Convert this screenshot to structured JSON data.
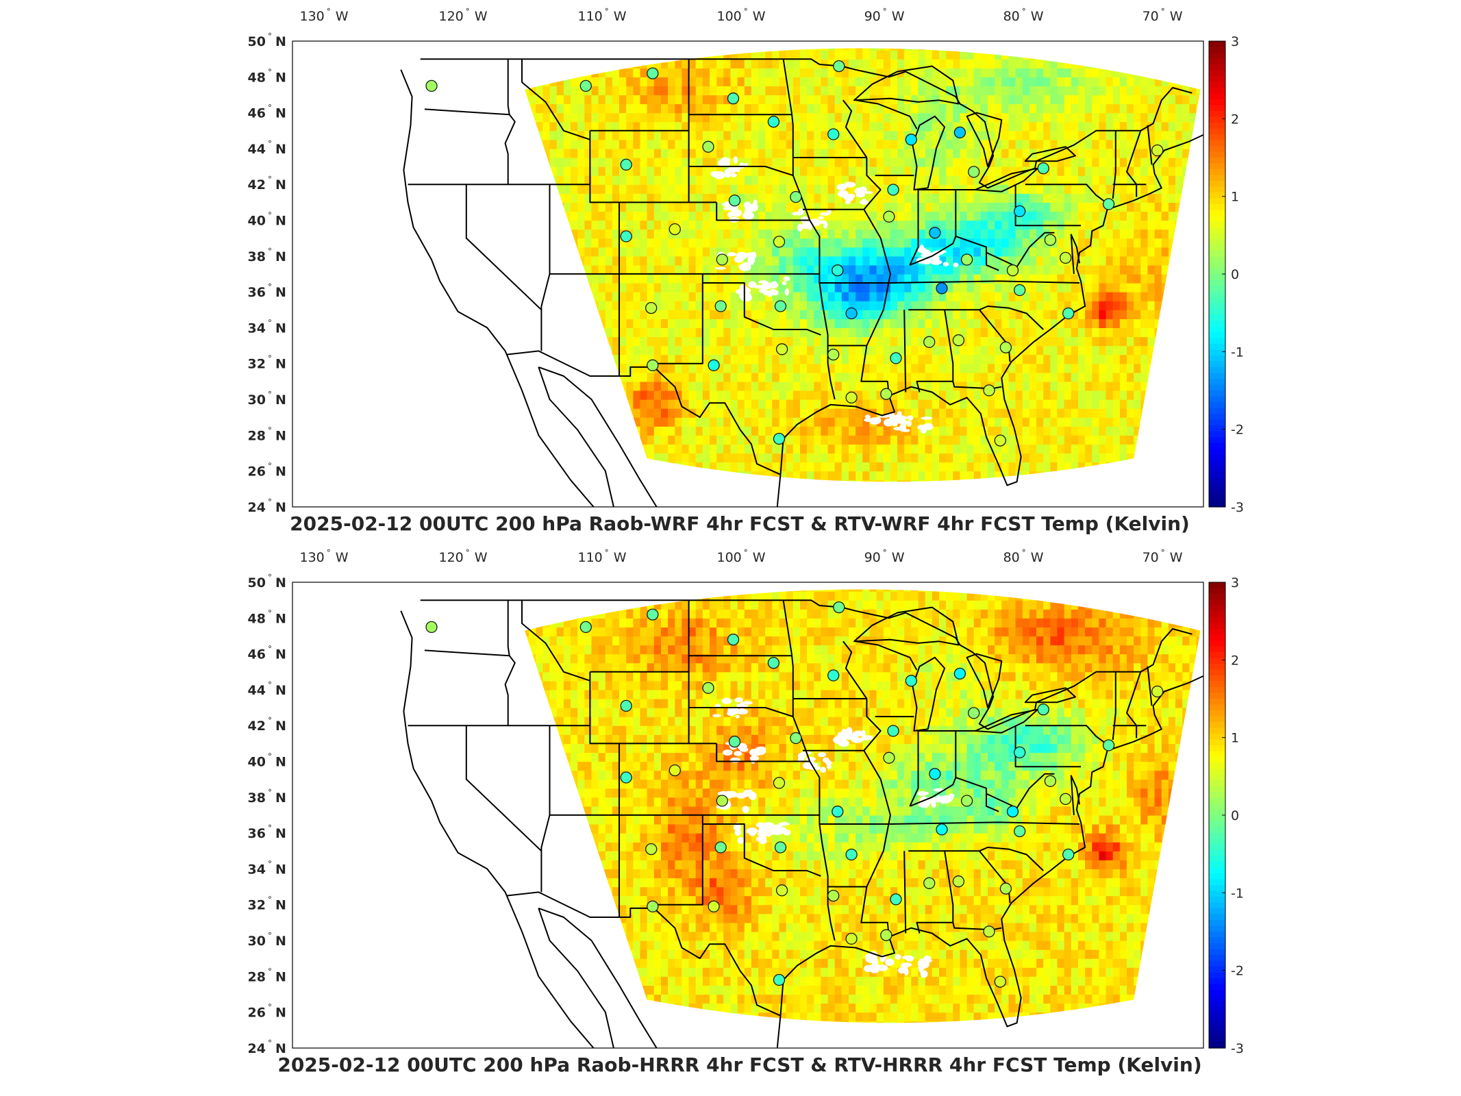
{
  "colors": {
    "colormap": "jet",
    "frame": "#000000",
    "state_lines": "#000000",
    "marker_edge": "#1a1a1a",
    "text": "#262626"
  },
  "colorbar": {
    "min": -3,
    "max": 3,
    "ticks": [
      "3",
      "2",
      "1",
      "0",
      "-1",
      "-2",
      "-3"
    ]
  },
  "lon_ticks": [
    {
      "label": "130",
      "suffix": "W",
      "lon": -130
    },
    {
      "label": "120",
      "suffix": "W",
      "lon": -120
    },
    {
      "label": "110",
      "suffix": "W",
      "lon": -110
    },
    {
      "label": "100",
      "suffix": "W",
      "lon": -100
    },
    {
      "label": "90",
      "suffix": "W",
      "lon": -90
    },
    {
      "label": "80",
      "suffix": "W",
      "lon": -80
    },
    {
      "label": "70",
      "suffix": "W",
      "lon": -70
    }
  ],
  "lat_ticks": [
    {
      "label": "50",
      "suffix": "N",
      "lat": 50
    },
    {
      "label": "48",
      "suffix": "N",
      "lat": 48
    },
    {
      "label": "46",
      "suffix": "N",
      "lat": 46
    },
    {
      "label": "44",
      "suffix": "N",
      "lat": 44
    },
    {
      "label": "42",
      "suffix": "N",
      "lat": 42
    },
    {
      "label": "40",
      "suffix": "N",
      "lat": 40
    },
    {
      "label": "38",
      "suffix": "N",
      "lat": 38
    },
    {
      "label": "36",
      "suffix": "N",
      "lat": 36
    },
    {
      "label": "34",
      "suffix": "N",
      "lat": 34
    },
    {
      "label": "32",
      "suffix": "N",
      "lat": 32
    },
    {
      "label": "30",
      "suffix": "N",
      "lat": 30
    },
    {
      "label": "28",
      "suffix": "N",
      "lat": 28
    },
    {
      "label": "26",
      "suffix": "N",
      "lat": 26
    },
    {
      "label": "24",
      "suffix": "N",
      "lat": 24
    }
  ],
  "panels": [
    {
      "title": "2025-02-12 00UTC 200 hPa Raob-WRF 4hr FCST & RTV-WRF 4hr FCST Temp (Kelvin)",
      "stations": [
        {
          "lon": -122.5,
          "lat": 47.5,
          "v": 0.2
        },
        {
          "lon": -111.4,
          "lat": 47.5,
          "v": -0.1
        },
        {
          "lon": -106.6,
          "lat": 48.2,
          "v": -0.2
        },
        {
          "lon": -100.8,
          "lat": 46.8,
          "v": -0.3
        },
        {
          "lon": -97.9,
          "lat": 45.5,
          "v": -0.5
        },
        {
          "lon": -93.6,
          "lat": 44.8,
          "v": -0.5
        },
        {
          "lon": -93.2,
          "lat": 48.6,
          "v": -0.1
        },
        {
          "lon": -88.0,
          "lat": 44.5,
          "v": -0.9
        },
        {
          "lon": -84.5,
          "lat": 44.9,
          "v": -1.1
        },
        {
          "lon": -83.5,
          "lat": 42.7,
          "v": 0.1
        },
        {
          "lon": -78.5,
          "lat": 42.9,
          "v": -0.3
        },
        {
          "lon": -70.3,
          "lat": 43.9,
          "v": 0.5
        },
        {
          "lon": -73.8,
          "lat": 40.9,
          "v": -0.2
        },
        {
          "lon": -80.2,
          "lat": 40.5,
          "v": -0.9
        },
        {
          "lon": -102.6,
          "lat": 44.1,
          "v": 0.2
        },
        {
          "lon": -108.5,
          "lat": 43.1,
          "v": -0.3
        },
        {
          "lon": -100.7,
          "lat": 41.1,
          "v": -0.2
        },
        {
          "lon": -96.3,
          "lat": 41.3,
          "v": 0.0
        },
        {
          "lon": -89.3,
          "lat": 41.7,
          "v": -0.4
        },
        {
          "lon": -89.6,
          "lat": 40.2,
          "v": 0.3
        },
        {
          "lon": -86.3,
          "lat": 39.3,
          "v": -1.1
        },
        {
          "lon": -84.0,
          "lat": 37.8,
          "v": 0.2
        },
        {
          "lon": -78.0,
          "lat": 38.9,
          "v": 0.3
        },
        {
          "lon": -108.5,
          "lat": 39.1,
          "v": -0.4
        },
        {
          "lon": -105.0,
          "lat": 39.5,
          "v": 0.6
        },
        {
          "lon": -97.5,
          "lat": 38.8,
          "v": 0.5
        },
        {
          "lon": -101.6,
          "lat": 37.8,
          "v": 0.3
        },
        {
          "lon": -93.3,
          "lat": 37.2,
          "v": -0.5
        },
        {
          "lon": -85.8,
          "lat": 36.2,
          "v": -1.4
        },
        {
          "lon": -80.7,
          "lat": 37.2,
          "v": 0.4
        },
        {
          "lon": -80.2,
          "lat": 36.1,
          "v": -0.2
        },
        {
          "lon": -76.7,
          "lat": 34.8,
          "v": -0.3
        },
        {
          "lon": -106.7,
          "lat": 35.1,
          "v": 0.4
        },
        {
          "lon": -101.7,
          "lat": 35.2,
          "v": -0.1
        },
        {
          "lon": -97.4,
          "lat": 35.2,
          "v": -0.2
        },
        {
          "lon": -92.3,
          "lat": 34.8,
          "v": -1.1
        },
        {
          "lon": -89.1,
          "lat": 32.3,
          "v": -0.4
        },
        {
          "lon": -86.7,
          "lat": 33.2,
          "v": 0.3
        },
        {
          "lon": -84.6,
          "lat": 33.3,
          "v": 0.4
        },
        {
          "lon": -81.2,
          "lat": 32.9,
          "v": 0.3
        },
        {
          "lon": -106.6,
          "lat": 31.9,
          "v": 0.2
        },
        {
          "lon": -102.2,
          "lat": 31.9,
          "v": -0.6
        },
        {
          "lon": -97.3,
          "lat": 32.8,
          "v": 0.5
        },
        {
          "lon": -93.6,
          "lat": 32.5,
          "v": 0.3
        },
        {
          "lon": -92.3,
          "lat": 30.1,
          "v": 0.5
        },
        {
          "lon": -89.8,
          "lat": 30.3,
          "v": 0.3
        },
        {
          "lon": -82.4,
          "lat": 30.5,
          "v": 0.4
        },
        {
          "lon": -97.5,
          "lat": 27.8,
          "v": -0.4
        },
        {
          "lon": -81.6,
          "lat": 27.7,
          "v": 0.5
        },
        {
          "lon": -76.9,
          "lat": 37.9,
          "v": 0.4
        }
      ]
    },
    {
      "title": "2025-02-12 00UTC 200 hPa Raob-HRRR 4hr FCST & RTV-HRRR 4hr FCST Temp (Kelvin)",
      "stations": [
        {
          "lon": -122.5,
          "lat": 47.5,
          "v": 0.2
        },
        {
          "lon": -111.4,
          "lat": 47.5,
          "v": -0.1
        },
        {
          "lon": -106.6,
          "lat": 48.2,
          "v": -0.2
        },
        {
          "lon": -100.8,
          "lat": 46.8,
          "v": -0.3
        },
        {
          "lon": -97.9,
          "lat": 45.5,
          "v": -0.3
        },
        {
          "lon": -93.6,
          "lat": 44.8,
          "v": -0.5
        },
        {
          "lon": -93.2,
          "lat": 48.6,
          "v": -0.1
        },
        {
          "lon": -88.0,
          "lat": 44.5,
          "v": -0.5
        },
        {
          "lon": -84.5,
          "lat": 44.9,
          "v": -0.8
        },
        {
          "lon": -83.5,
          "lat": 42.7,
          "v": 0.1
        },
        {
          "lon": -78.5,
          "lat": 42.9,
          "v": -0.3
        },
        {
          "lon": -70.3,
          "lat": 43.9,
          "v": 0.5
        },
        {
          "lon": -73.8,
          "lat": 40.9,
          "v": -0.2
        },
        {
          "lon": -80.2,
          "lat": 40.5,
          "v": -0.5
        },
        {
          "lon": -102.6,
          "lat": 44.1,
          "v": 0.2
        },
        {
          "lon": -108.5,
          "lat": 43.1,
          "v": -0.3
        },
        {
          "lon": -100.7,
          "lat": 41.1,
          "v": -0.2
        },
        {
          "lon": -96.3,
          "lat": 41.3,
          "v": 0.0
        },
        {
          "lon": -89.3,
          "lat": 41.7,
          "v": -0.4
        },
        {
          "lon": -89.6,
          "lat": 40.2,
          "v": 0.3
        },
        {
          "lon": -86.3,
          "lat": 39.3,
          "v": -0.8
        },
        {
          "lon": -84.0,
          "lat": 37.8,
          "v": 0.2
        },
        {
          "lon": -78.0,
          "lat": 38.9,
          "v": 0.3
        },
        {
          "lon": -108.5,
          "lat": 39.1,
          "v": -0.4
        },
        {
          "lon": -105.0,
          "lat": 39.5,
          "v": 0.6
        },
        {
          "lon": -97.5,
          "lat": 38.8,
          "v": 0.5
        },
        {
          "lon": -101.6,
          "lat": 37.8,
          "v": 0.3
        },
        {
          "lon": -93.3,
          "lat": 37.2,
          "v": -0.5
        },
        {
          "lon": -85.8,
          "lat": 36.2,
          "v": -0.7
        },
        {
          "lon": -80.7,
          "lat": 37.2,
          "v": -0.8
        },
        {
          "lon": -80.2,
          "lat": 36.1,
          "v": -0.2
        },
        {
          "lon": -76.7,
          "lat": 34.8,
          "v": -0.3
        },
        {
          "lon": -106.7,
          "lat": 35.1,
          "v": 0.4
        },
        {
          "lon": -101.7,
          "lat": 35.2,
          "v": -0.1
        },
        {
          "lon": -97.4,
          "lat": 35.2,
          "v": -0.2
        },
        {
          "lon": -92.3,
          "lat": 34.8,
          "v": -0.4
        },
        {
          "lon": -89.1,
          "lat": 32.3,
          "v": -0.4
        },
        {
          "lon": -86.7,
          "lat": 33.2,
          "v": 0.3
        },
        {
          "lon": -84.6,
          "lat": 33.3,
          "v": 0.4
        },
        {
          "lon": -81.2,
          "lat": 32.9,
          "v": 0.3
        },
        {
          "lon": -106.6,
          "lat": 31.9,
          "v": 0.2
        },
        {
          "lon": -102.2,
          "lat": 31.9,
          "v": 0.5
        },
        {
          "lon": -97.3,
          "lat": 32.8,
          "v": 0.5
        },
        {
          "lon": -93.6,
          "lat": 32.5,
          "v": 0.3
        },
        {
          "lon": -92.3,
          "lat": 30.1,
          "v": 0.5
        },
        {
          "lon": -89.8,
          "lat": 30.3,
          "v": 0.3
        },
        {
          "lon": -82.4,
          "lat": 30.5,
          "v": 0.4
        },
        {
          "lon": -97.5,
          "lat": 27.8,
          "v": -0.4
        },
        {
          "lon": -81.6,
          "lat": 27.7,
          "v": 0.5
        },
        {
          "lon": -76.9,
          "lat": 37.9,
          "v": 0.4
        }
      ]
    }
  ]
}
